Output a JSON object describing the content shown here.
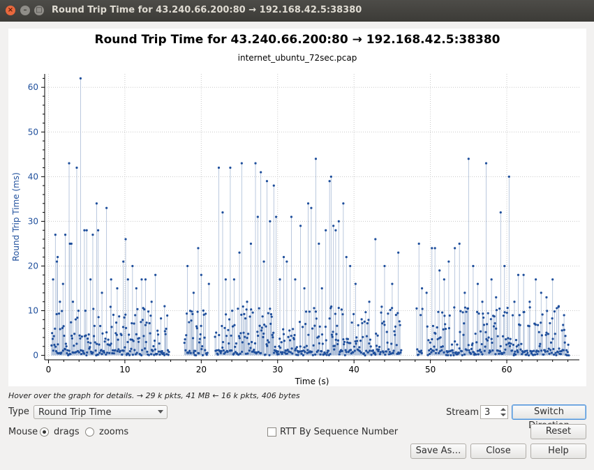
{
  "window": {
    "title": "Round Trip Time for 43.240.66.200:80 → 192.168.42.5:38380"
  },
  "chart_data": {
    "type": "scatter",
    "title": "Round Trip Time for 43.240.66.200:80 → 192.168.42.5:38380",
    "subtitle": "internet_ubuntu_72sec.pcap",
    "xlabel": "Time (s)",
    "ylabel": "Round Trip Time (ms)",
    "xlim": [
      -0.5,
      69.5
    ],
    "ylim": [
      -1,
      63
    ],
    "xticks": [
      0,
      10,
      20,
      30,
      40,
      50,
      60
    ],
    "yticks": [
      0,
      10,
      20,
      30,
      40,
      50,
      60
    ],
    "grid": true,
    "series_color": "#1f4f9c",
    "stem_color": "#a9bbd6",
    "peaks": [
      [
        0.6,
        17
      ],
      [
        0.9,
        27
      ],
      [
        1.1,
        21
      ],
      [
        1.2,
        22
      ],
      [
        1.5,
        12
      ],
      [
        1.9,
        16
      ],
      [
        2.2,
        27
      ],
      [
        2.7,
        43
      ],
      [
        2.8,
        25
      ],
      [
        3.0,
        25
      ],
      [
        3.2,
        12
      ],
      [
        3.7,
        42
      ],
      [
        4.2,
        62
      ],
      [
        4.7,
        28
      ],
      [
        5.0,
        28
      ],
      [
        5.5,
        17
      ],
      [
        5.8,
        27
      ],
      [
        6.3,
        34
      ],
      [
        6.5,
        28
      ],
      [
        7.0,
        14
      ],
      [
        7.6,
        33
      ],
      [
        8.2,
        17
      ],
      [
        9.0,
        15
      ],
      [
        9.8,
        21
      ],
      [
        10.1,
        26
      ],
      [
        10.4,
        17
      ],
      [
        11.0,
        20
      ],
      [
        11.5,
        15
      ],
      [
        12.2,
        17
      ],
      [
        12.7,
        17
      ],
      [
        13.5,
        12
      ],
      [
        14.0,
        18
      ],
      [
        15.2,
        11
      ],
      [
        18.2,
        20
      ],
      [
        19.0,
        14
      ],
      [
        19.6,
        24
      ],
      [
        20.0,
        18
      ],
      [
        21.0,
        16
      ],
      [
        22.3,
        42
      ],
      [
        22.8,
        32
      ],
      [
        23.2,
        17
      ],
      [
        23.8,
        42
      ],
      [
        24.3,
        17
      ],
      [
        25.0,
        23
      ],
      [
        25.3,
        43
      ],
      [
        26.0,
        12
      ],
      [
        26.5,
        25
      ],
      [
        27.1,
        43
      ],
      [
        27.4,
        31
      ],
      [
        27.8,
        41
      ],
      [
        28.2,
        21
      ],
      [
        28.6,
        39
      ],
      [
        29.0,
        30
      ],
      [
        29.5,
        38
      ],
      [
        29.8,
        31
      ],
      [
        30.3,
        17
      ],
      [
        30.8,
        22
      ],
      [
        31.2,
        21
      ],
      [
        31.8,
        31
      ],
      [
        32.3,
        17
      ],
      [
        33.0,
        29
      ],
      [
        33.5,
        15
      ],
      [
        34.0,
        34
      ],
      [
        34.4,
        33
      ],
      [
        35.0,
        44
      ],
      [
        35.4,
        25
      ],
      [
        35.8,
        15
      ],
      [
        36.3,
        28
      ],
      [
        36.8,
        39
      ],
      [
        37.0,
        40
      ],
      [
        37.3,
        29
      ],
      [
        37.6,
        28
      ],
      [
        38.0,
        30
      ],
      [
        38.6,
        34
      ],
      [
        39.0,
        22
      ],
      [
        39.5,
        20
      ],
      [
        40.2,
        16
      ],
      [
        42.0,
        12
      ],
      [
        42.8,
        26
      ],
      [
        44.0,
        20
      ],
      [
        45.0,
        16
      ],
      [
        45.8,
        23
      ],
      [
        48.5,
        25
      ],
      [
        48.9,
        15
      ],
      [
        49.5,
        14
      ],
      [
        50.2,
        24
      ],
      [
        50.6,
        24
      ],
      [
        51.2,
        19
      ],
      [
        51.8,
        17
      ],
      [
        52.4,
        21
      ],
      [
        53.2,
        24
      ],
      [
        53.8,
        25
      ],
      [
        54.5,
        14
      ],
      [
        55.0,
        44
      ],
      [
        55.6,
        20
      ],
      [
        56.2,
        16
      ],
      [
        56.8,
        12
      ],
      [
        57.3,
        43
      ],
      [
        58.0,
        17
      ],
      [
        58.6,
        13
      ],
      [
        59.2,
        32
      ],
      [
        59.7,
        20
      ],
      [
        60.3,
        40
      ],
      [
        61.0,
        12
      ],
      [
        61.5,
        18
      ],
      [
        62.2,
        18
      ],
      [
        63.0,
        12
      ],
      [
        63.8,
        17
      ],
      [
        64.5,
        14
      ],
      [
        65.2,
        13
      ],
      [
        66.0,
        17
      ],
      [
        66.8,
        11
      ],
      [
        67.5,
        9
      ]
    ],
    "segments": [
      [
        0.4,
        15.8
      ],
      [
        17.8,
        20.8
      ],
      [
        21.8,
        46.2
      ],
      [
        48.2,
        49.0
      ],
      [
        49.6,
        68.2
      ]
    ]
  },
  "hint_text": "Hover over the graph for details. → 29 k pkts, 41 MB ← 16 k pkts, 406 bytes",
  "controls": {
    "type_label": "Type",
    "type_value": "Round Trip Time",
    "mouse_label": "Mouse",
    "drags_label": "drags",
    "zooms_label": "zooms",
    "rtt_seq_label": "RTT By Sequence Number",
    "stream_label": "Stream",
    "stream_value": "3",
    "switch_direction": "Switch Direction",
    "reset": "Reset",
    "save_as": "Save As…",
    "close": "Close",
    "help": "Help"
  }
}
